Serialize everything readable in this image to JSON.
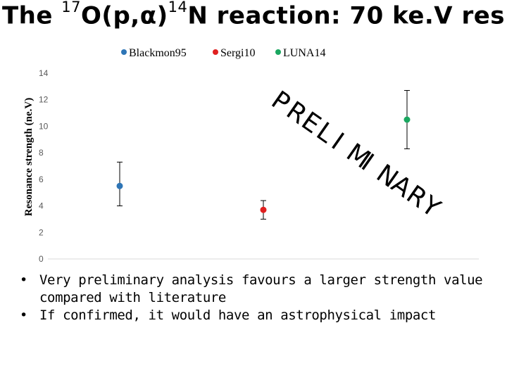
{
  "title": {
    "prefix": "The",
    "mass1": "17",
    "core": "O(p,α)",
    "mass2": "14",
    "suffix": "N reaction: 70 ke.V res"
  },
  "watermark": "PRELIMINARY",
  "bullets": [
    "Very preliminary analysis favours a larger strength value compared with literature",
    "If confirmed, it would have an astrophysical impact"
  ],
  "chart_data": {
    "type": "scatter",
    "title": "",
    "xlabel": "",
    "ylabel": "Resonance strength (ne.V)",
    "ylim": [
      0,
      14
    ],
    "yticks": [
      0,
      2,
      4,
      6,
      8,
      10,
      12,
      14
    ],
    "xlim": [
      0.5,
      3.5
    ],
    "grid": false,
    "legend_position": "top",
    "series": [
      {
        "name": "Blackmon95",
        "color": "#2e75b6",
        "x": 1,
        "y": 5.5,
        "yerr_low": 1.5,
        "yerr_high": 1.8
      },
      {
        "name": "Sergi10",
        "color": "#e02020",
        "x": 2,
        "y": 3.7,
        "yerr_low": 0.7,
        "yerr_high": 0.7
      },
      {
        "name": "LUNA14",
        "color": "#1aa760",
        "x": 3,
        "y": 10.5,
        "yerr_low": 2.2,
        "yerr_high": 2.2
      }
    ]
  }
}
